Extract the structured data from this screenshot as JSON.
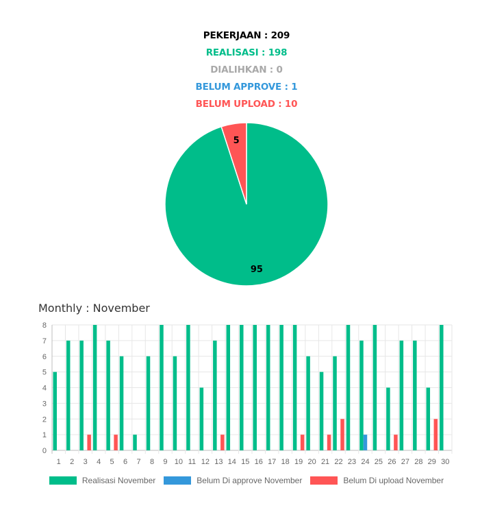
{
  "stats": {
    "pekerjaan": "PEKERJAAN : 209",
    "realisasi": "REALISASI : 198",
    "dialihkan": "DIALIHKAN : 0",
    "belum_approve": "BELUM APPROVE : 1",
    "belum_upload": "BELUM UPLOAD : 10"
  },
  "colors": {
    "realisasi": "#00bd8a",
    "dialihkan": "#a9a9a9",
    "belum_approve": "#3498db",
    "belum_upload": "#ff5555",
    "pekerjaan": "#000000"
  },
  "monthly_title": "Monthly : November",
  "chart_data": [
    {
      "type": "pie",
      "slices": [
        {
          "label": "",
          "value": 95,
          "color": "#00bd8a"
        },
        {
          "label": "",
          "value": 5,
          "color": "#ff5555"
        }
      ],
      "data_labels": [
        "95",
        "5"
      ]
    },
    {
      "type": "bar",
      "categories": [
        "1",
        "2",
        "3",
        "4",
        "5",
        "6",
        "7",
        "8",
        "9",
        "10",
        "11",
        "12",
        "13",
        "14",
        "15",
        "16",
        "17",
        "18",
        "19",
        "20",
        "21",
        "22",
        "23",
        "24",
        "25",
        "26",
        "27",
        "28",
        "29",
        "30"
      ],
      "series": [
        {
          "name": "Realisasi November",
          "color": "#00bd8a",
          "values": [
            5,
            7,
            7,
            8,
            7,
            6,
            1,
            6,
            8,
            6,
            8,
            4,
            7,
            8,
            8,
            8,
            8,
            8,
            8,
            6,
            5,
            6,
            8,
            7,
            8,
            4,
            7,
            7,
            4,
            8
          ]
        },
        {
          "name": "Belum Di approve November",
          "color": "#3498db",
          "values": [
            0,
            0,
            0,
            0,
            0,
            0,
            0,
            0,
            0,
            0,
            0,
            0,
            0,
            0,
            0,
            0,
            0,
            0,
            0,
            0,
            0,
            0,
            0,
            1,
            0,
            0,
            0,
            0,
            0,
            0
          ]
        },
        {
          "name": "Belum Di upload November",
          "color": "#ff5555",
          "values": [
            0,
            0,
            1,
            0,
            1,
            0,
            0,
            0,
            0,
            0,
            0,
            0,
            1,
            0,
            0,
            0,
            0,
            0,
            1,
            0,
            1,
            2,
            0,
            0,
            0,
            1,
            0,
            0,
            2,
            0
          ]
        }
      ],
      "ylim": [
        0,
        8
      ],
      "yticks": [
        "0",
        "1",
        "2",
        "3",
        "4",
        "5",
        "6",
        "7",
        "8"
      ],
      "grid": true,
      "legend": "bottom"
    }
  ]
}
